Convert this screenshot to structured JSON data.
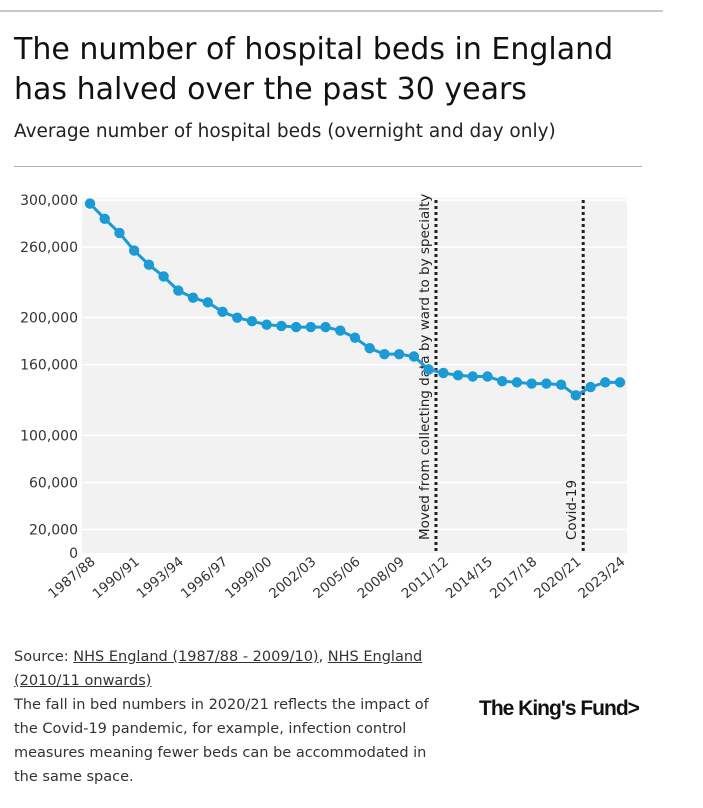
{
  "header": {
    "title": "The number of hospital beds in England has halved over the past 30 years",
    "subtitle": "Average number of hospital beds (overnight and day only)"
  },
  "chart_data": {
    "type": "line",
    "title": "The number of hospital beds in England has halved over the past 30 years",
    "subtitle": "Average number of hospital beds (overnight and day only)",
    "xlabel": "",
    "ylabel": "",
    "ylim": [
      0,
      300000
    ],
    "y_ticks": [
      0,
      20000,
      60000,
      100000,
      160000,
      200000,
      260000,
      300000
    ],
    "y_tick_labels": [
      "0",
      "20,000",
      "60,000",
      "100,000",
      "160,000",
      "200,000",
      "260,000",
      "300,000"
    ],
    "x_tick_labels": [
      "1987/88",
      "1990/91",
      "1993/94",
      "1996/97",
      "1999/00",
      "2002/03",
      "2005/06",
      "2008/09",
      "2011/12",
      "2014/15",
      "2017/18",
      "2020/21",
      "2023/24"
    ],
    "categories": [
      "1987/88",
      "1988/89",
      "1989/90",
      "1990/91",
      "1991/92",
      "1992/93",
      "1993/94",
      "1994/95",
      "1995/96",
      "1996/97",
      "1997/98",
      "1998/99",
      "1999/00",
      "2000/01",
      "2001/02",
      "2002/03",
      "2003/04",
      "2004/05",
      "2005/06",
      "2006/07",
      "2007/08",
      "2008/09",
      "2009/10",
      "2010/11",
      "2011/12",
      "2012/13",
      "2013/14",
      "2014/15",
      "2015/16",
      "2016/17",
      "2017/18",
      "2018/19",
      "2019/20",
      "2020/21",
      "2021/22",
      "2022/23",
      "2023/24"
    ],
    "series": [
      {
        "name": "Average number of hospital beds",
        "color": "#1b9ad6",
        "values": [
          297000,
          284000,
          272000,
          257000,
          245000,
          235000,
          223000,
          217000,
          213000,
          205000,
          200000,
          197000,
          194000,
          193000,
          192000,
          192000,
          192000,
          189000,
          183000,
          174000,
          169000,
          169000,
          167000,
          156000,
          153000,
          151000,
          150000,
          150000,
          146000,
          145000,
          144000,
          144000,
          143000,
          134000,
          141000,
          145000,
          145000
        ]
      }
    ],
    "annotations": [
      {
        "at": "2010/11",
        "text": "Moved from collecting data by ward to by specialty"
      },
      {
        "at": "2020/21",
        "text": "Covid-19"
      }
    ]
  },
  "footer": {
    "source_prefix": "Source: ",
    "source_link_1": "NHS England (1987/88 - 2009/10)",
    "source_sep": ", ",
    "source_link_2a": "NHS England",
    "source_link_2b": "(2010/11 onwards)",
    "note": "The fall in bed numbers in 2020/21 reflects the impact of the Covid-19 pandemic, for example, infection control measures meaning fewer beds can be accommodated in the same space."
  },
  "logo": {
    "text": "The King's Fund>"
  },
  "colors": {
    "line": "#1b9ad6",
    "plot_bg": "#f2f2f2",
    "grid": "#ffffff",
    "annotation": "#222222"
  }
}
